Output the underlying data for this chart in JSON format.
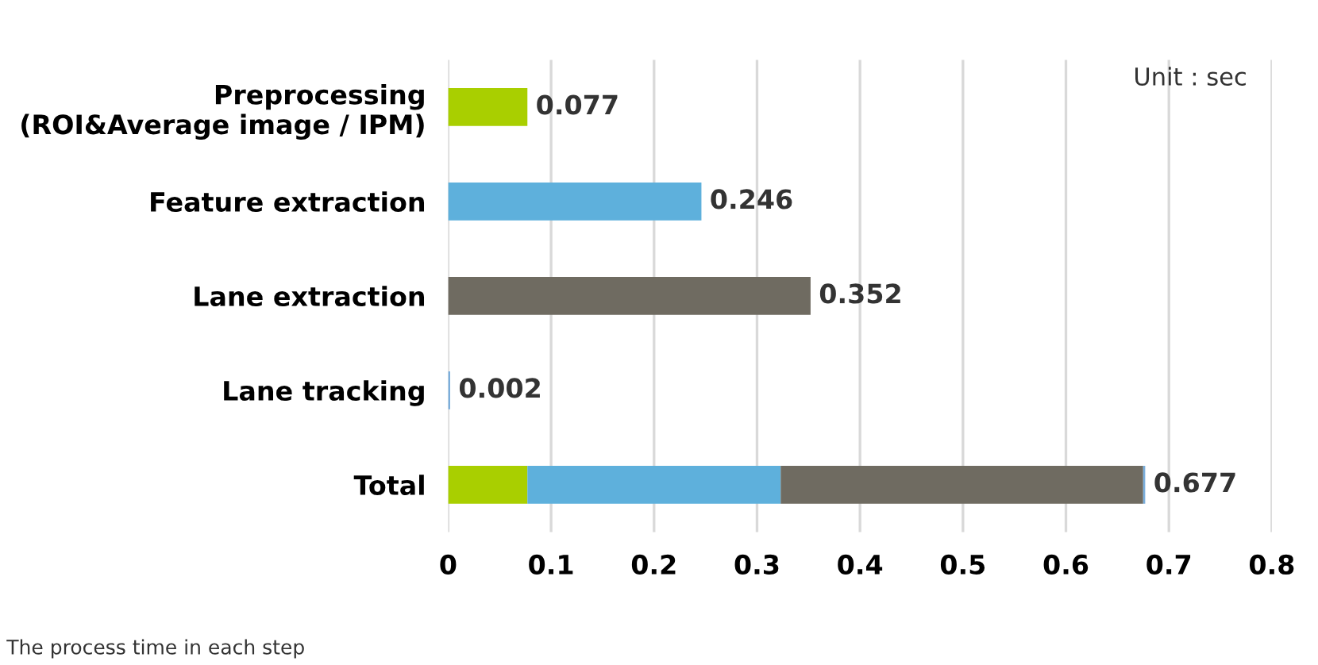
{
  "chart_data": {
    "type": "bar",
    "orientation": "horizontal",
    "stacked": true,
    "categories": [
      "Preprocessing\n(ROI&Average image / IPM)",
      "Feature extraction",
      "Lane extraction",
      "Lane tracking",
      "Total"
    ],
    "series": [
      {
        "color": "#a9cf00",
        "values": [
          0.077,
          null,
          null,
          null,
          0.077
        ]
      },
      {
        "color": "#5eb0dc",
        "values": [
          null,
          0.246,
          null,
          null,
          0.246
        ]
      },
      {
        "color": "#6f6b61",
        "values": [
          null,
          null,
          0.352,
          null,
          0.352
        ]
      },
      {
        "color": "#7aaedc",
        "values": [
          null,
          null,
          null,
          0.002,
          0.002
        ]
      }
    ],
    "totals": [
      "0.077",
      "0.246",
      "0.352",
      "0.002",
      "0.677"
    ],
    "xlim": [
      0,
      0.8
    ],
    "xticks": [
      0,
      0.1,
      0.2,
      0.3,
      0.4,
      0.5,
      0.6,
      0.7,
      0.8
    ],
    "grid": "x",
    "annotations": [
      "Unit : sec",
      "The process time in each step"
    ]
  }
}
